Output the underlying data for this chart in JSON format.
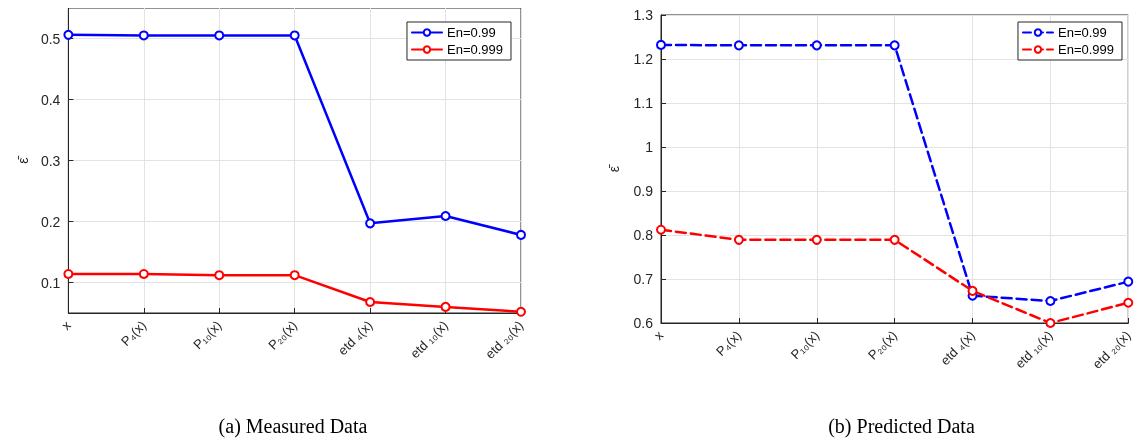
{
  "chart_data": [
    {
      "type": "line",
      "title": "(a) Measured Data",
      "ylabel": "ε̄",
      "categories": [
        "x",
        "P₄(x)",
        "P₁₀(x)",
        "P₂₀(x)",
        "etd ₄(x)",
        "etd ₁₀(x)",
        "etd ₂₀(x)"
      ],
      "series": [
        {
          "name": "En=0.99",
          "color": "#0000ff",
          "values": [
            0.506,
            0.505,
            0.505,
            0.505,
            0.197,
            0.209,
            0.178
          ]
        },
        {
          "name": "En=0.999",
          "color": "#ff0000",
          "values": [
            0.114,
            0.114,
            0.112,
            0.112,
            0.068,
            0.06,
            0.052
          ]
        }
      ],
      "ylim": [
        0.05,
        0.55
      ],
      "yticks": [
        0.1,
        0.2,
        0.3,
        0.4,
        0.5
      ],
      "grid": true,
      "legend": "top right",
      "marker": "circle",
      "line_style": "solid"
    },
    {
      "type": "line",
      "title": "(b) Predicted Data",
      "ylabel": "ε̄",
      "categories": [
        "x",
        "P₄(x)",
        "P₁₀(x)",
        "P₂₀(x)",
        "etd ₄(x)",
        "etd ₁₀(x)",
        "etd ₂₀(x)"
      ],
      "series": [
        {
          "name": "En=0.99",
          "color": "#0000ff",
          "values": [
            1.232,
            1.231,
            1.231,
            1.231,
            0.662,
            0.65,
            0.694
          ]
        },
        {
          "name": "En=0.999",
          "color": "#ff0000",
          "values": [
            0.812,
            0.789,
            0.789,
            0.789,
            0.673,
            0.6,
            0.646
          ]
        }
      ],
      "ylim": [
        0.6,
        1.3
      ],
      "yticks": [
        0.6,
        0.7,
        0.8,
        0.9,
        1,
        1.1,
        1.2,
        1.3
      ],
      "grid": true,
      "legend": "top right",
      "marker": "circle",
      "line_style": "dashed"
    }
  ]
}
